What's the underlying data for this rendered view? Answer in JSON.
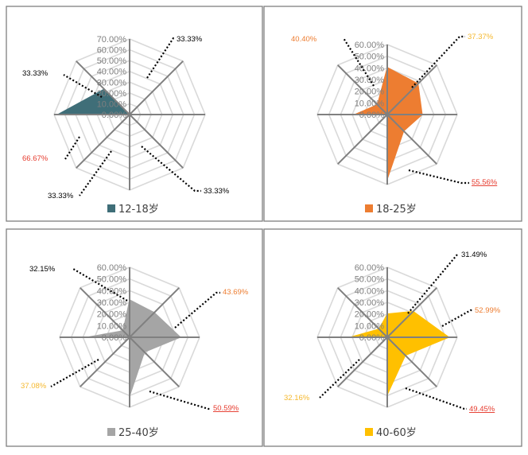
{
  "colors": {
    "panel_border": "#808080",
    "grid": "#d9d9d9",
    "spoke": "#808080",
    "annotation_red": "#e63b2e"
  },
  "chart_data": [
    {
      "type": "radar",
      "legend_label": "12-18岁",
      "legend_position": "bottom",
      "color": "#3f6e78",
      "axes_count": 8,
      "rmax": 70,
      "tick_labels": [
        "70.00%",
        "60.00%",
        "50.00%",
        "40.00%",
        "30.00%",
        "20.00%",
        "10.00%",
        "0.00%"
      ],
      "values": [
        0,
        33.33,
        0,
        0,
        33.33,
        0,
        66.67,
        33.33
      ],
      "annotations": [
        {
          "text": "33.33%",
          "color": "#000000",
          "underline": false
        },
        {
          "text": "33.33%",
          "color": "#000000",
          "underline": false
        },
        {
          "text": "66.67%",
          "color": "#e63b2e",
          "underline": false
        },
        {
          "text": "33.33%",
          "color": "#000000",
          "underline": false
        },
        {
          "text": "33.33%",
          "color": "#000000",
          "underline": false
        }
      ]
    },
    {
      "type": "radar",
      "legend_label": "18-25岁",
      "legend_position": "bottom",
      "color": "#ed7d31",
      "axes_count": 8,
      "rmax": 60,
      "tick_labels": [
        "60.00%",
        "50.00%",
        "40.00%",
        "30.00%",
        "20.00%",
        "10.00%",
        "0.00%"
      ],
      "values": [
        40.4,
        37.37,
        30,
        20,
        55.56,
        0,
        28,
        12
      ],
      "annotations": [
        {
          "text": "40.40%",
          "color": "#ed7d31",
          "underline": false
        },
        {
          "text": "37.37%",
          "color": "#f5b82e",
          "underline": false
        },
        {
          "text": "55.56%",
          "color": "#e63b2e",
          "underline": true
        }
      ]
    },
    {
      "type": "radar",
      "legend_label": "25-40岁",
      "legend_position": "bottom",
      "color": "#a5a5a5",
      "axes_count": 8,
      "rmax": 60,
      "tick_labels": [
        "60.00%",
        "50.00%",
        "40.00%",
        "30.00%",
        "20.00%",
        "10.00%",
        "0.00%"
      ],
      "values": [
        32.15,
        30,
        43.69,
        18,
        50.59,
        0,
        37.08,
        8
      ],
      "annotations": [
        {
          "text": "32.15%",
          "color": "#000000",
          "underline": false
        },
        {
          "text": "43.69%",
          "color": "#ed7d31",
          "underline": false
        },
        {
          "text": "50.59%",
          "color": "#e63b2e",
          "underline": true
        },
        {
          "text": "37.08%",
          "color": "#f5b82e",
          "underline": false
        }
      ]
    },
    {
      "type": "radar",
      "legend_label": "40-60岁",
      "legend_position": "bottom",
      "color": "#ffc000",
      "axes_count": 8,
      "rmax": 60,
      "tick_labels": [
        "60.00%",
        "50.00%",
        "40.00%",
        "30.00%",
        "20.00%",
        "10.00%",
        "0.00%"
      ],
      "values": [
        20,
        31.49,
        52.99,
        22,
        49.45,
        0,
        32.16,
        10
      ],
      "annotations": [
        {
          "text": "31.49%",
          "color": "#000000",
          "underline": false
        },
        {
          "text": "52.99%",
          "color": "#ed7d31",
          "underline": false
        },
        {
          "text": "49.45%",
          "color": "#e63b2e",
          "underline": true
        },
        {
          "text": "32.16%",
          "color": "#f5b82e",
          "underline": false
        }
      ]
    }
  ]
}
